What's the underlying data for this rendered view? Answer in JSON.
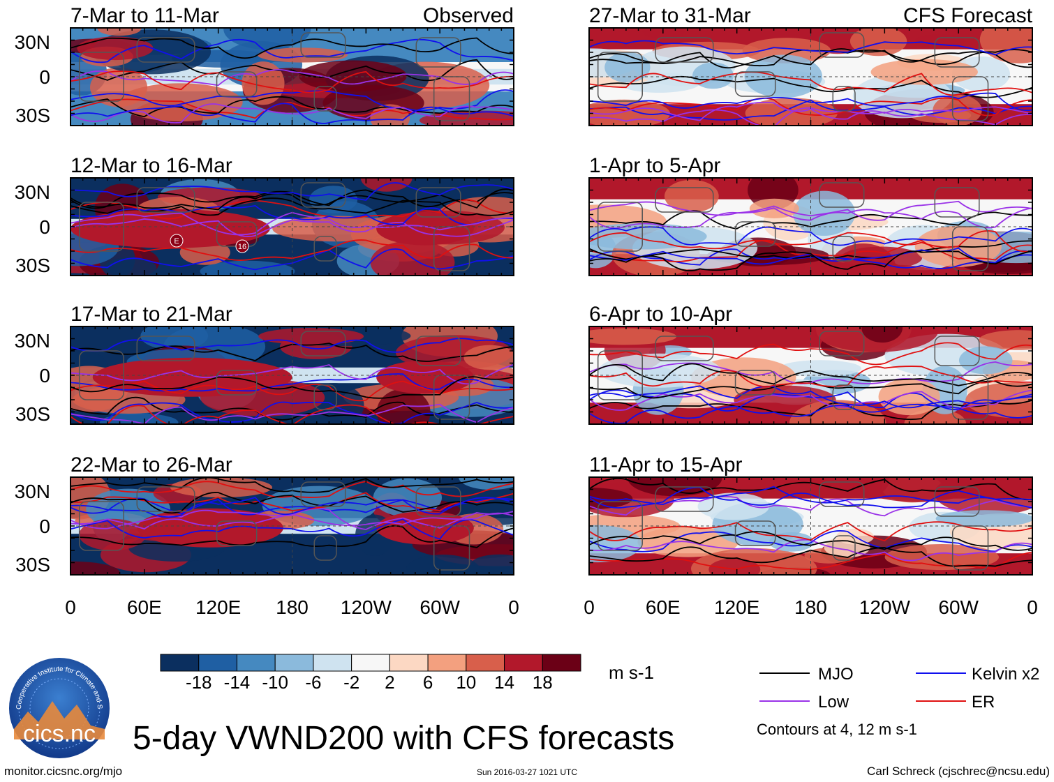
{
  "figure": {
    "main_title": "5-day VWND200 with CFS forecasts",
    "url": "monitor.cicsnc.org/mjo",
    "timestamp": "Sun 2016-03-27 1021 UTC",
    "author": "Carl Schreck (cjschrec@ncsu.edu)",
    "logo": {
      "text": "cics.nc",
      "ring_text": "Cooperative Institute for Climate and Satellites"
    }
  },
  "columns": {
    "left_label": "Observed",
    "right_label": "CFS Forecast"
  },
  "lat_labels": [
    "30N",
    "0",
    "30S"
  ],
  "lon_labels": [
    "0",
    "60E",
    "120E",
    "180",
    "120W",
    "60W",
    "0"
  ],
  "panels_left": [
    {
      "title": "7-Mar to 11-Mar",
      "pattern": 0
    },
    {
      "title": "12-Mar to 16-Mar",
      "pattern": 1,
      "markers": [
        "E",
        "16"
      ]
    },
    {
      "title": "17-Mar to 21-Mar",
      "pattern": 2
    },
    {
      "title": "22-Mar to 26-Mar",
      "pattern": 3
    }
  ],
  "panels_right": [
    {
      "title": "27-Mar to 31-Mar",
      "pattern": 4
    },
    {
      "title": "1-Apr to 5-Apr",
      "pattern": 5
    },
    {
      "title": "6-Apr to 10-Apr",
      "pattern": 6
    },
    {
      "title": "11-Apr to 15-Apr",
      "pattern": 7
    }
  ],
  "colorbar": {
    "unit": "m s-1",
    "tick_labels": [
      "-18",
      "-14",
      "-10",
      "-6",
      "-2",
      "2",
      "6",
      "10",
      "14",
      "18"
    ],
    "colors": [
      "#0b2f5f",
      "#1f5fa3",
      "#4589c0",
      "#8bbadc",
      "#cfe3f0",
      "#f7f7f7",
      "#fcd8c3",
      "#f3a07f",
      "#d85f4b",
      "#b2182b",
      "#6b0016"
    ]
  },
  "legend": {
    "items": [
      {
        "label": "MJO",
        "color": "#000000"
      },
      {
        "label": "Kelvin x2",
        "color": "#1010ee"
      },
      {
        "label": "Low",
        "color": "#9a32e8"
      },
      {
        "label": "ER",
        "color": "#e01010"
      }
    ],
    "note": "Contours at 4, 12 m s-1"
  }
}
